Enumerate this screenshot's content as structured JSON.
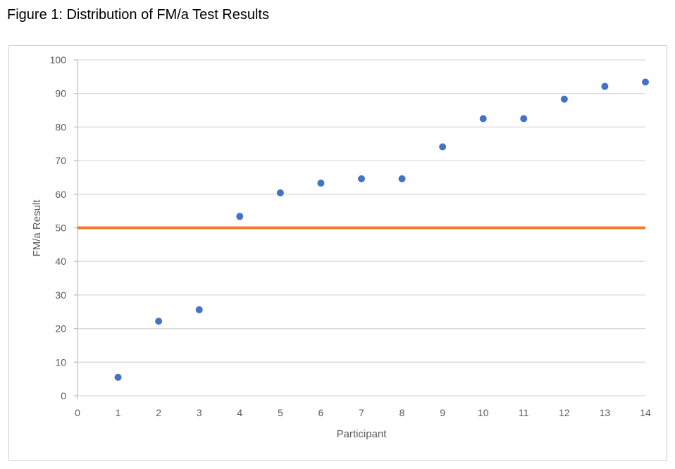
{
  "figure_title": "Figure 1: Distribution of FM/a Test Results",
  "chart_data": {
    "type": "scatter",
    "title": "",
    "xlabel": "Participant",
    "ylabel": "FM/a Result",
    "xlim": [
      0,
      14
    ],
    "ylim": [
      0,
      100
    ],
    "x_ticks": [
      0,
      1,
      2,
      3,
      4,
      5,
      6,
      7,
      8,
      9,
      10,
      11,
      12,
      13,
      14
    ],
    "y_ticks": [
      0,
      10,
      20,
      30,
      40,
      50,
      60,
      70,
      80,
      90,
      100
    ],
    "grid": "horizontal",
    "series": [
      {
        "name": "FM/a Result",
        "color": "#4472c4",
        "x": [
          1,
          2,
          3,
          4,
          5,
          6,
          7,
          8,
          9,
          10,
          11,
          12,
          13,
          14
        ],
        "y": [
          5.5,
          22.2,
          25.6,
          53.4,
          60.4,
          63.3,
          64.6,
          64.6,
          74.1,
          82.5,
          82.5,
          88.3,
          92.1,
          93.4
        ]
      }
    ],
    "reference_line": {
      "y": 50,
      "color": "#ed7d31"
    }
  }
}
